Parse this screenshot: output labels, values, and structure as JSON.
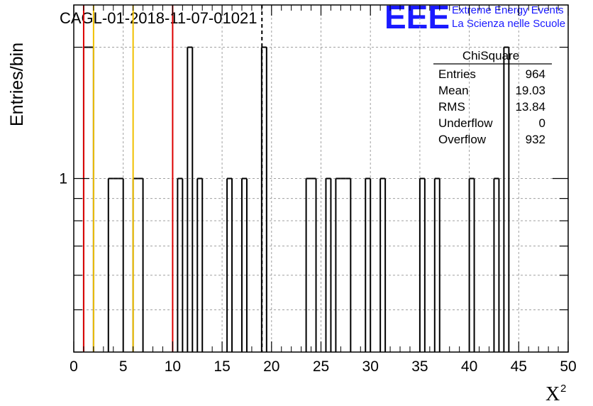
{
  "chart_data": {
    "type": "histogram",
    "title": "CAGL-01-2018-11-07-01021",
    "xlabel": "X",
    "xlabel_superscript": "2",
    "ylabel": "Entries/bin",
    "xlim": [
      0,
      50
    ],
    "ylim_log": [
      0.4,
      2.5
    ],
    "log_y": true,
    "grid": true,
    "bin_width": 0.5,
    "x_ticks": [
      "0",
      "5",
      "10",
      "15",
      "20",
      "25",
      "30",
      "35",
      "40",
      "45",
      "50"
    ],
    "y_ticks": [
      "1"
    ],
    "bins": [
      {
        "x": 1.0,
        "value": 2
      },
      {
        "x": 1.5,
        "value": 2
      },
      {
        "x": 3.5,
        "value": 1
      },
      {
        "x": 4.0,
        "value": 1
      },
      {
        "x": 4.5,
        "value": 1
      },
      {
        "x": 6.0,
        "value": 1
      },
      {
        "x": 6.5,
        "value": 1
      },
      {
        "x": 10.5,
        "value": 1
      },
      {
        "x": 11.5,
        "value": 2
      },
      {
        "x": 12.5,
        "value": 1
      },
      {
        "x": 15.5,
        "value": 1
      },
      {
        "x": 17.0,
        "value": 1
      },
      {
        "x": 19.0,
        "value": 2
      },
      {
        "x": 23.5,
        "value": 1
      },
      {
        "x": 24.0,
        "value": 1
      },
      {
        "x": 25.5,
        "value": 1
      },
      {
        "x": 26.5,
        "value": 1
      },
      {
        "x": 27.0,
        "value": 1
      },
      {
        "x": 27.5,
        "value": 1
      },
      {
        "x": 29.5,
        "value": 1
      },
      {
        "x": 31.0,
        "value": 1
      },
      {
        "x": 35.0,
        "value": 1
      },
      {
        "x": 36.5,
        "value": 1
      },
      {
        "x": 40.0,
        "value": 1
      },
      {
        "x": 42.5,
        "value": 1
      },
      {
        "x": 43.5,
        "value": 2
      }
    ],
    "vertical_lines": [
      {
        "x": 1,
        "color": "#dd0000",
        "style": "solid"
      },
      {
        "x": 2,
        "color": "#f0c000",
        "style": "solid"
      },
      {
        "x": 6,
        "color": "#f0c000",
        "style": "solid"
      },
      {
        "x": 10,
        "color": "#dd0000",
        "style": "solid"
      },
      {
        "x": 19.03,
        "color": "#000000",
        "style": "dashed"
      }
    ],
    "stats_box": {
      "title": "ChiSquare",
      "rows": [
        {
          "label": "Entries",
          "value": "964"
        },
        {
          "label": "Mean",
          "value": "19.03"
        },
        {
          "label": "RMS",
          "value": "13.84"
        },
        {
          "label": "Underflow",
          "value": "0"
        },
        {
          "label": "Overflow",
          "value": "932"
        }
      ]
    }
  },
  "logo": {
    "text": "EEE",
    "line1": "Extreme Energy Events",
    "line2": "La Scienza nelle Scuole",
    "color": "#1a1aff"
  }
}
